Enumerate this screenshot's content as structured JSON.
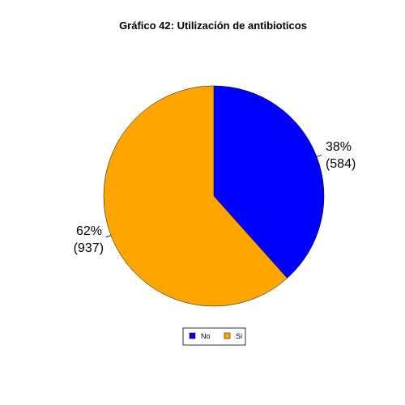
{
  "chart_data": {
    "type": "pie",
    "title": "Gráfico 42: Utilización de antibioticos",
    "slices": [
      {
        "name": "No",
        "value": 584,
        "percent_label": "38%",
        "count_label": "(584)",
        "color": "#0000ff"
      },
      {
        "name": "Si",
        "value": 937,
        "percent_label": "62%",
        "count_label": "(937)",
        "color": "#ffa500"
      }
    ],
    "legend": {
      "position": "bottom-center",
      "entries": [
        "No",
        "Si"
      ]
    },
    "start_angle": "12 o'clock",
    "direction": "clockwise"
  }
}
